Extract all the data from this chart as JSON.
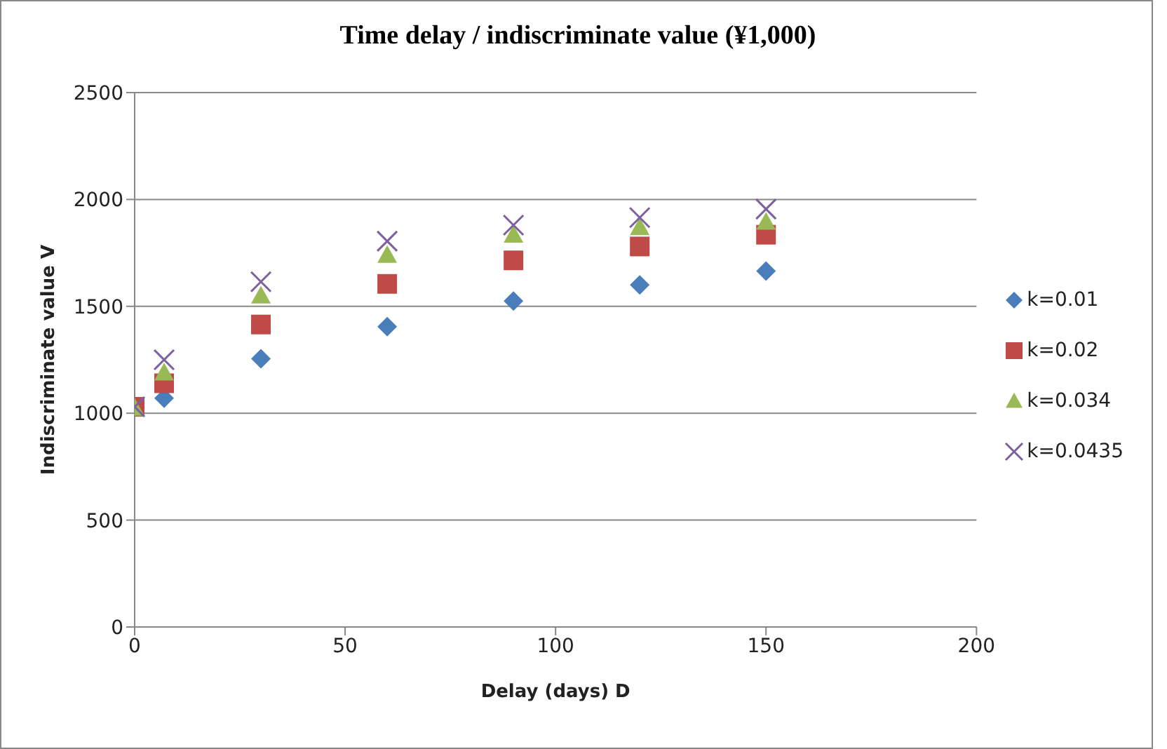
{
  "chart_data": {
    "type": "scatter",
    "title": "Time delay / indiscriminate value (¥1,000)",
    "xlabel": "Delay (days) D",
    "ylabel": "Indiscriminate value V",
    "x": [
      0,
      7,
      30,
      60,
      90,
      120,
      150
    ],
    "series": [
      {
        "name": "k=0.01",
        "color": "#4a7ebb",
        "marker": "diamond",
        "values": [
          null,
          1070,
          1255,
          1405,
          1525,
          1600,
          1665
        ]
      },
      {
        "name": "k=0.02",
        "color": "#be4b48",
        "marker": "square",
        "values": [
          1030,
          1140,
          1415,
          1605,
          1715,
          1780,
          1835
        ]
      },
      {
        "name": "k=0.034",
        "color": "#98b954",
        "marker": "triangle",
        "values": [
          1025,
          1190,
          1550,
          1740,
          1835,
          1870,
          1895
        ]
      },
      {
        "name": "k=0.0435",
        "color": "#7d60a0",
        "marker": "cross",
        "values": [
          1030,
          1250,
          1615,
          1805,
          1880,
          1915,
          1955
        ]
      }
    ],
    "xlim": [
      0,
      200
    ],
    "xticks": [
      0,
      50,
      100,
      150,
      200
    ],
    "ylim": [
      0,
      2500
    ],
    "yticks": [
      0,
      500,
      1000,
      1500,
      2000,
      2500
    ],
    "grid": "y",
    "legend": "right"
  }
}
